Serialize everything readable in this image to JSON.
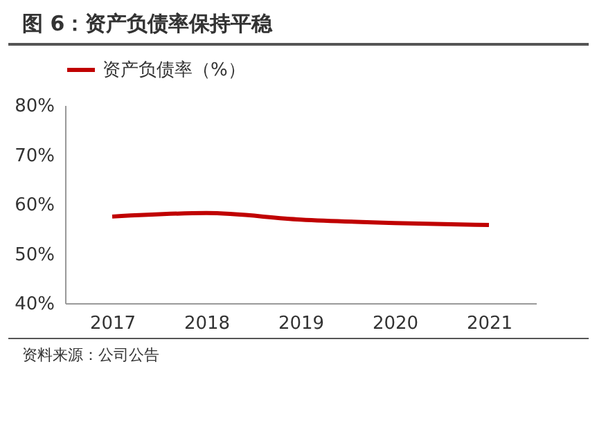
{
  "chart_data": {
    "type": "line",
    "title": "图 6：资产负债率保持平稳",
    "categories": [
      "2017",
      "2018",
      "2019",
      "2020",
      "2021"
    ],
    "series": [
      {
        "name": "资产负债率（%）",
        "color": "#c00000",
        "values": [
          57.5,
          58.2,
          56.9,
          56.2,
          55.8
        ]
      }
    ],
    "ylim": [
      40,
      80
    ],
    "yticks": [
      {
        "value": 40,
        "label": "40%"
      },
      {
        "value": 50,
        "label": "50%"
      },
      {
        "value": 60,
        "label": "60%"
      },
      {
        "value": 70,
        "label": "70%"
      },
      {
        "value": 80,
        "label": "80%"
      }
    ],
    "grid": false,
    "legend": "top",
    "marker": "none",
    "line_style": "solid",
    "annotations": [
      "资料来源：公司公告"
    ]
  }
}
